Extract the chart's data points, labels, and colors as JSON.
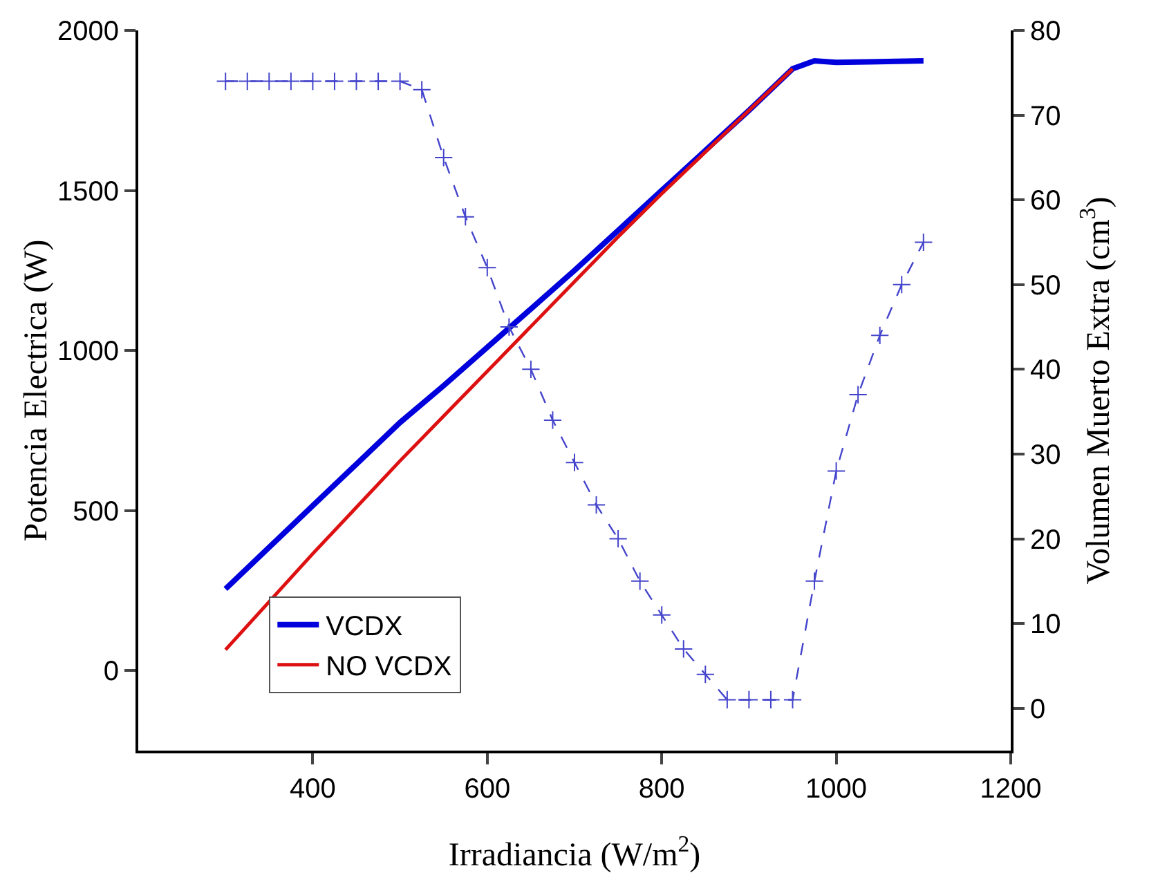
{
  "chart_data": {
    "type": "line",
    "xlabel": "Irradiancia (W/m$^{2}$)",
    "ylabel": "Potencia Electrica (W)",
    "y2label": "Volumen Muerto Extra (cm$^{3}$)",
    "xlim": [
      200,
      1200
    ],
    "xticks": [
      400,
      600,
      800,
      1000,
      1200
    ],
    "ylim": [
      -250,
      2000
    ],
    "yticks": [
      0,
      500,
      1000,
      1500,
      2000
    ],
    "y2lim": [
      -5,
      80
    ],
    "y2ticks": [
      0,
      10,
      20,
      30,
      40,
      50,
      60,
      70,
      80
    ],
    "grid": false,
    "legend": "bottom left",
    "marker": "none",
    "line_style": "solid",
    "series": [
      {
        "name": "VCDX",
        "color": "#0000dd",
        "x": [
          300,
          350,
          400,
          450,
          500,
          550,
          600,
          650,
          700,
          750,
          800,
          850,
          900,
          950,
          975,
          1000,
          1100
        ],
        "values": [
          255,
          385,
          515,
          645,
          775,
          890,
          1010,
          1130,
          1250,
          1375,
          1500,
          1625,
          1750,
          1880,
          1905,
          1900,
          1905
        ]
      },
      {
        "name": "NO VCDX",
        "color": "#dd1111",
        "x": [
          300,
          350,
          400,
          450,
          500,
          550,
          600,
          650,
          700,
          750,
          800,
          850,
          900,
          950
        ],
        "values": [
          65,
          215,
          365,
          510,
          655,
          795,
          935,
          1075,
          1215,
          1355,
          1490,
          1620,
          1750,
          1880
        ]
      },
      {
        "color": "#4444cc",
        "axis": "y2",
        "marker": "cross",
        "line_style": "dashed",
        "x": [
          300,
          325,
          350,
          375,
          400,
          425,
          450,
          475,
          500,
          525,
          550,
          575,
          600,
          625,
          650,
          675,
          700,
          725,
          750,
          775,
          800,
          825,
          850,
          875,
          900,
          925,
          950,
          975,
          1000,
          1025,
          1050,
          1075,
          1100
        ],
        "values": [
          74,
          74,
          74,
          74,
          74,
          74,
          74,
          74,
          74,
          73,
          65,
          58,
          52,
          45,
          40,
          34,
          29,
          24,
          20,
          15,
          11,
          7,
          4,
          1,
          1,
          1,
          1,
          15,
          28,
          37,
          44,
          50,
          55
        ]
      }
    ]
  }
}
